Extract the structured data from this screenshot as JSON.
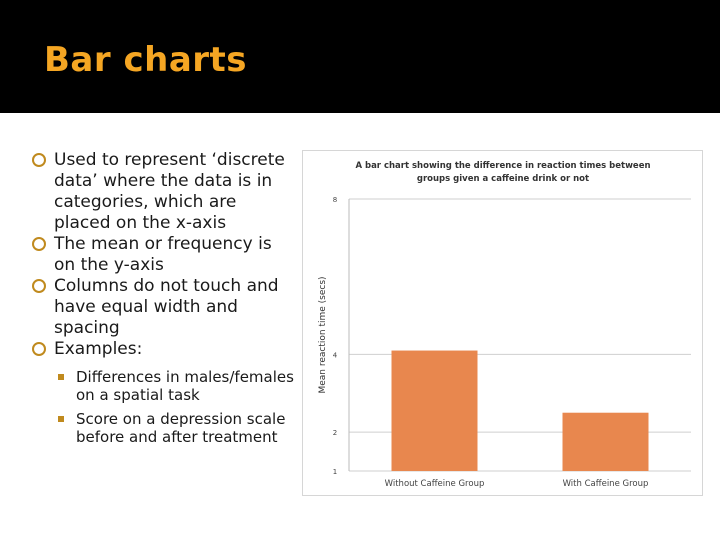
{
  "slide": {
    "title": "Bar charts"
  },
  "bullets": [
    "Used to represent ‘discrete data’ where the data is in categories, which are placed on the x-axis",
    "The mean or frequency is on the y-axis",
    "Columns do not touch and have equal width and spacing",
    "Examples:"
  ],
  "sub_bullets": [
    "Differences in males/females on a spatial task",
    "Score on a depression scale before and after treatment"
  ],
  "colors": {
    "title_bar": "#000000",
    "title_text": "#f5a623",
    "bar": "#e8874e",
    "bullet_accent": "#c08a1e"
  },
  "chart_data": {
    "type": "bar",
    "title_lines": [
      "A bar chart showing the difference in reaction times between",
      "groups given a caffeine drink or not"
    ],
    "categories": [
      "Without Caffeine Group",
      "With Caffeine Group"
    ],
    "values": [
      4.1,
      2.5
    ],
    "ylabel": "Mean reaction time (secs)",
    "xlabel": "",
    "ylim": [
      1,
      8
    ],
    "yticks": [
      1,
      2,
      4,
      8
    ],
    "grid": true
  }
}
